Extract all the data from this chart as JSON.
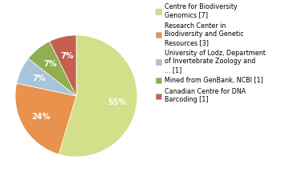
{
  "labels": [
    "Centre for Biodiversity\nGenomics [7]",
    "Research Center in\nBiodiversity and Genetic\nResources [3]",
    "University of Lodz, Department\nof Invertebrate Zoology and\n... [1]",
    "Mined from GenBank, NCBI [1]",
    "Canadian Centre for DNA\nBarcoding [1]"
  ],
  "values": [
    53,
    23,
    7,
    7,
    7
  ],
  "colors": [
    "#d4df8a",
    "#e8924e",
    "#a8c4d8",
    "#8faf50",
    "#c46050"
  ],
  "startangle": 90,
  "background_color": "#ffffff",
  "pct_fontsize": 7,
  "legend_fontsize": 5.8
}
